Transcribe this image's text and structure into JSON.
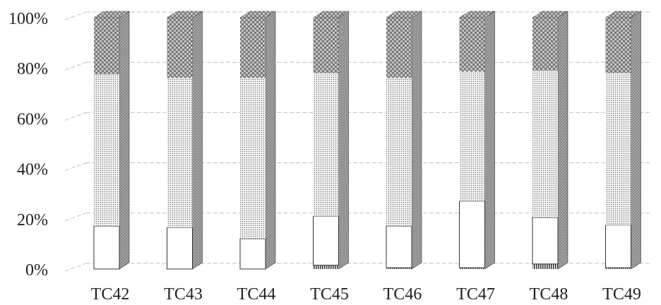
{
  "chart_data": {
    "type": "bar",
    "stacked": true,
    "percent_stacked": true,
    "three_d": true,
    "categories": [
      "TC42",
      "TC43",
      "TC44",
      "TC45",
      "TC46",
      "TC47",
      "TC48",
      "TC49"
    ],
    "y_ticks": [
      "0%",
      "20%",
      "40%",
      "60%",
      "80%",
      "100%"
    ],
    "ylim": [
      0,
      100
    ],
    "grid": true,
    "legend": "none",
    "series": [
      {
        "pattern": "vertical-hatch",
        "values": [
          0,
          0,
          0,
          1.5,
          0.5,
          0.5,
          2,
          0.5
        ]
      },
      {
        "pattern": "plain-white",
        "values": [
          17,
          16.5,
          12,
          19.5,
          16.5,
          26.5,
          18.5,
          17
        ]
      },
      {
        "pattern": "fine-dots",
        "values": [
          60.5,
          59.5,
          64,
          57,
          59,
          51.5,
          58.5,
          60.5
        ]
      },
      {
        "pattern": "cross-hatch",
        "values": [
          22.5,
          24,
          24,
          22,
          24,
          21.5,
          21,
          22
        ]
      }
    ],
    "colors": {
      "outline": "#333333",
      "grid": "#bfbfbf",
      "side_face": "#9a9a9a"
    }
  }
}
